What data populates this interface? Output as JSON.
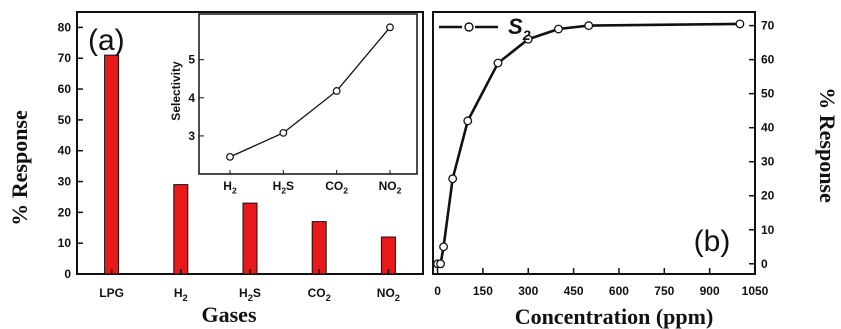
{
  "chart_data": [
    {
      "type": "bar",
      "panel_label": "(a)",
      "xlabel": "Gases",
      "ylabel": "% Response",
      "categories": [
        "LPG",
        "H2",
        "H2S",
        "CO2",
        "NO2"
      ],
      "category_labels": [
        {
          "base": "LPG",
          "sub": ""
        },
        {
          "base": "H",
          "sub": "2"
        },
        {
          "base": "H",
          "sub": "2",
          "suffix": "S"
        },
        {
          "base": "CO",
          "sub": "2"
        },
        {
          "base": "NO",
          "sub": "2"
        }
      ],
      "values": [
        71,
        29,
        23,
        17,
        12
      ],
      "ylim": [
        0,
        85
      ],
      "yticks": [
        0,
        10,
        20,
        30,
        40,
        50,
        60,
        70,
        80
      ],
      "bar_color": "#e8191b",
      "inset": {
        "type": "line",
        "ylabel": "Selectivity",
        "categories": [
          "H2",
          "H2S",
          "CO2",
          "NO2"
        ],
        "category_labels": [
          {
            "base": "H",
            "sub": "2"
          },
          {
            "base": "H",
            "sub": "2",
            "suffix": "S"
          },
          {
            "base": "CO",
            "sub": "2"
          },
          {
            "base": "NO",
            "sub": "2"
          }
        ],
        "values": [
          2.45,
          3.08,
          4.18,
          5.85
        ],
        "ylim": [
          2,
          6.2
        ],
        "yticks": [
          3,
          4,
          5
        ]
      }
    },
    {
      "type": "line",
      "panel_label": "(b)",
      "xlabel": "Concentration (ppm)",
      "ylabel": "% Response",
      "x": [
        0,
        10,
        20,
        50,
        100,
        200,
        300,
        400,
        500,
        1000
      ],
      "series": [
        {
          "name": "S2",
          "name_base": "S",
          "name_sub": "2",
          "values": [
            0,
            0,
            5,
            25,
            42,
            59,
            66,
            69,
            70,
            70.5
          ]
        }
      ],
      "xlim": [
        -15,
        1050
      ],
      "ylim": [
        -3,
        74
      ],
      "xticks": [
        0,
        150,
        300,
        450,
        600,
        750,
        900,
        1050
      ],
      "yticks": [
        0,
        10,
        20,
        30,
        40,
        50,
        60,
        70
      ],
      "legend_position": "top-left"
    }
  ]
}
